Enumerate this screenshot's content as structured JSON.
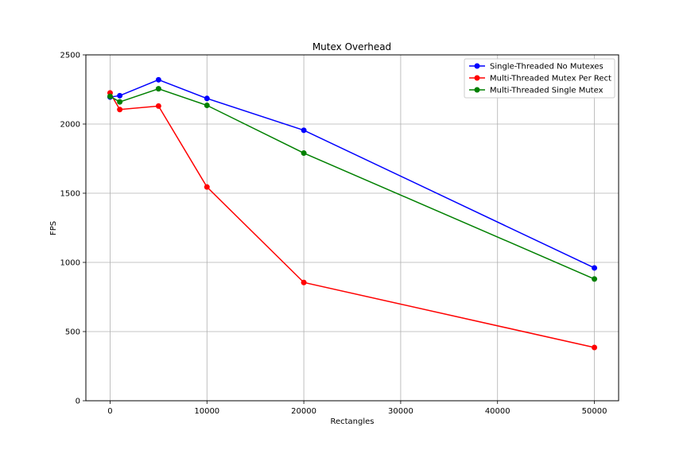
{
  "chart_data": {
    "type": "line",
    "title": "Mutex Overhead",
    "xlabel": "Rectangles",
    "ylabel": "FPS",
    "xlim": [
      -2500,
      52500
    ],
    "ylim": [
      0,
      2500
    ],
    "xticks": [
      0,
      10000,
      20000,
      30000,
      40000,
      50000
    ],
    "yticks": [
      0,
      500,
      1000,
      1500,
      2000,
      2500
    ],
    "grid": true,
    "legend_position": "top-right",
    "x": [
      0,
      1000,
      5000,
      10000,
      20000,
      50000
    ],
    "series": [
      {
        "name": "Single-Threaded No Mutexes",
        "color": "#0000ff",
        "values": [
          2195,
          2205,
          2320,
          2185,
          1955,
          960
        ]
      },
      {
        "name": "Multi-Threaded Mutex Per Rect",
        "color": "#ff0000",
        "values": [
          2225,
          2105,
          2130,
          1545,
          855,
          385
        ]
      },
      {
        "name": "Multi-Threaded Single Mutex",
        "color": "#008000",
        "values": [
          2200,
          2160,
          2255,
          2135,
          1790,
          880
        ]
      }
    ]
  }
}
